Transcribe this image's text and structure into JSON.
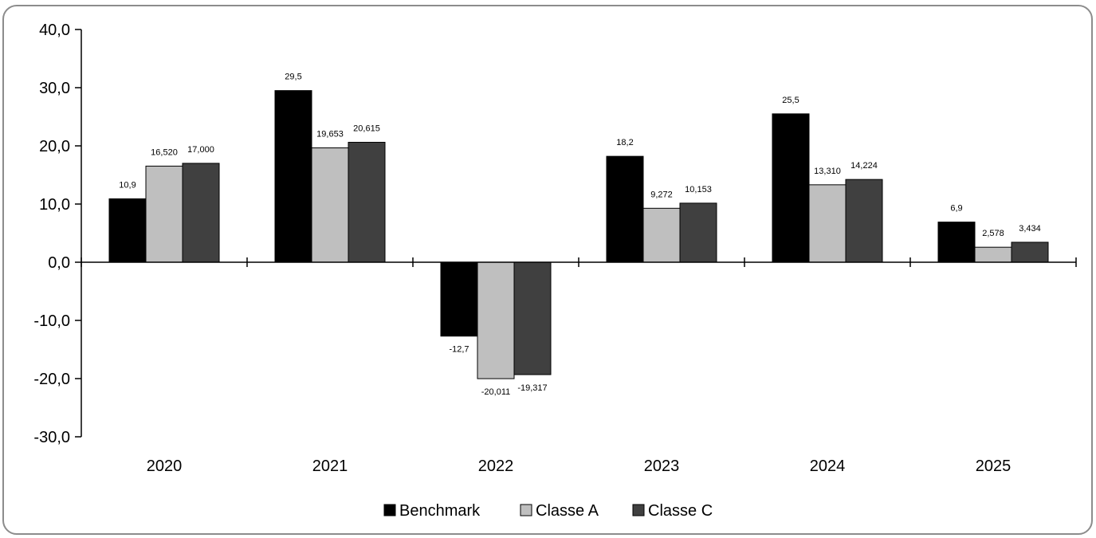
{
  "chart_data": {
    "type": "bar",
    "categories": [
      "2020",
      "2021",
      "2022",
      "2023",
      "2024",
      "2025"
    ],
    "series": [
      {
        "name": "Benchmark",
        "color": "#000000",
        "values": [
          10.9,
          29.5,
          -12.7,
          18.2,
          25.5,
          6.9
        ],
        "labels": [
          "10,9",
          "29,5",
          "-12,7",
          "18,2",
          "25,5",
          "6,9"
        ]
      },
      {
        "name": "Classe A",
        "color": "#bfbfbf",
        "values": [
          16.52,
          19.653,
          -20.011,
          9.272,
          13.31,
          2.578
        ],
        "labels": [
          "16,520",
          "19,653",
          "-20,011",
          "9,272",
          "13,310",
          "2,578"
        ]
      },
      {
        "name": "Classe C",
        "color": "#404040",
        "values": [
          17.0,
          20.615,
          -19.317,
          10.153,
          14.224,
          3.434
        ],
        "labels": [
          "17,000",
          "20,615",
          "-19,317",
          "10,153",
          "14,224",
          "3,434"
        ]
      }
    ],
    "yticks": [
      40,
      30,
      20,
      10,
      0,
      -10,
      -20,
      -30
    ],
    "ytick_labels": [
      "40,0",
      "30,0",
      "20,0",
      "10,0",
      "0,0",
      "-10,0",
      "-20,0",
      "-30,0"
    ],
    "ylim": [
      -30,
      40
    ],
    "grid": false,
    "legend_position": "bottom",
    "title": "",
    "xlabel": "",
    "ylabel": ""
  }
}
